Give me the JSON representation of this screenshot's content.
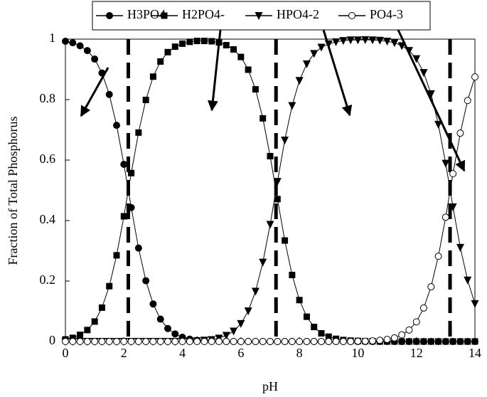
{
  "chart_data": {
    "type": "line",
    "x_label": "pH",
    "y_label": "Fraction of Total Phosphorus",
    "x": [
      0,
      0.25,
      0.5,
      0.75,
      1,
      1.25,
      1.5,
      1.75,
      2,
      2.25,
      2.5,
      2.75,
      3,
      3.25,
      3.5,
      3.75,
      4,
      4.25,
      4.5,
      4.75,
      5,
      5.25,
      5.5,
      5.75,
      6,
      6.25,
      6.5,
      6.75,
      7,
      7.25,
      7.5,
      7.75,
      8,
      8.25,
      8.5,
      8.75,
      9,
      9.25,
      9.5,
      9.75,
      10,
      10.25,
      10.5,
      10.75,
      11,
      11.25,
      11.5,
      11.75,
      12,
      12.25,
      12.5,
      12.75,
      13,
      13.25,
      13.5,
      13.75,
      14
    ],
    "series": [
      {
        "name": "H3PO4",
        "color": "#000000",
        "marker": "circle",
        "values": [
          0.993,
          0.988,
          0.978,
          0.962,
          0.934,
          0.888,
          0.817,
          0.715,
          0.586,
          0.443,
          0.309,
          0.201,
          0.124,
          0.074,
          0.043,
          0.025,
          0.014,
          0.008,
          0.004,
          0.003,
          0.001,
          0.001,
          0,
          0,
          0,
          0,
          0,
          0,
          0,
          0,
          0,
          0,
          0,
          0,
          0,
          0,
          0,
          0,
          0,
          0,
          0,
          0,
          0,
          0,
          0,
          0,
          0,
          0,
          0,
          0,
          0,
          0,
          0,
          0,
          0,
          0,
          0
        ]
      },
      {
        "name": "H2PO4-",
        "color": "#000000",
        "marker": "square",
        "values": [
          0.007,
          0.012,
          0.022,
          0.038,
          0.066,
          0.112,
          0.183,
          0.285,
          0.414,
          0.557,
          0.691,
          0.799,
          0.876,
          0.926,
          0.957,
          0.975,
          0.985,
          0.991,
          0.994,
          0.994,
          0.993,
          0.989,
          0.98,
          0.966,
          0.941,
          0.899,
          0.834,
          0.738,
          0.613,
          0.471,
          0.334,
          0.22,
          0.137,
          0.082,
          0.048,
          0.027,
          0.016,
          0.009,
          0.005,
          0.003,
          0.002,
          0.001,
          0.001,
          0,
          0,
          0,
          0,
          0,
          0,
          0,
          0,
          0,
          0,
          0,
          0,
          0,
          0
        ]
      },
      {
        "name": "HPO4-2",
        "color": "#000000",
        "marker": "triangle",
        "values": [
          0,
          0,
          0,
          0,
          0,
          0,
          0,
          0,
          0,
          0,
          0,
          0,
          0,
          0,
          0,
          0,
          0.001,
          0.001,
          0.002,
          0.004,
          0.006,
          0.011,
          0.02,
          0.034,
          0.059,
          0.101,
          0.166,
          0.262,
          0.387,
          0.529,
          0.666,
          0.78,
          0.863,
          0.918,
          0.952,
          0.973,
          0.984,
          0.991,
          0.995,
          0.997,
          0.997,
          0.998,
          0.997,
          0.996,
          0.993,
          0.988,
          0.978,
          0.962,
          0.935,
          0.889,
          0.819,
          0.718,
          0.589,
          0.445,
          0.311,
          0.203,
          0.125
        ]
      },
      {
        "name": "PO4-3",
        "color": "#000000",
        "marker": "open-circle",
        "values": [
          0,
          0,
          0,
          0,
          0,
          0,
          0,
          0,
          0,
          0,
          0,
          0,
          0,
          0,
          0,
          0,
          0,
          0,
          0,
          0,
          0,
          0,
          0,
          0,
          0,
          0,
          0,
          0,
          0,
          0,
          0,
          0,
          0,
          0,
          0,
          0,
          0,
          0,
          0,
          0,
          0.001,
          0.001,
          0.002,
          0.004,
          0.007,
          0.012,
          0.022,
          0.038,
          0.065,
          0.111,
          0.181,
          0.282,
          0.411,
          0.555,
          0.689,
          0.797,
          0.875
        ]
      }
    ],
    "vlines": [
      2.15,
      7.2,
      13.15
    ],
    "xlim": [
      0,
      14
    ],
    "xticks": [
      0,
      2,
      4,
      6,
      8,
      10,
      12,
      14
    ],
    "ylim": [
      0,
      1
    ],
    "yticks": [
      0,
      0.2,
      0.4,
      0.6,
      0.8,
      1
    ]
  }
}
